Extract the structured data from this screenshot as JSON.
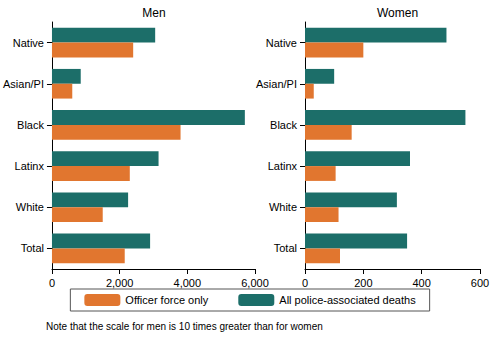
{
  "chart_data": [
    {
      "type": "bar",
      "title": "Men",
      "orientation": "horizontal",
      "categories": [
        "Native",
        "Asian/PI",
        "Black",
        "Latinx",
        "White",
        "Total"
      ],
      "series": [
        {
          "name": "Officer force only",
          "color": "#e1762f",
          "values": [
            2400,
            600,
            3800,
            2300,
            1500,
            2150
          ]
        },
        {
          "name": "All police-associated deaths",
          "color": "#1c6e69",
          "values": [
            3050,
            850,
            5700,
            3150,
            2250,
            2900
          ]
        }
      ],
      "xlim": [
        0,
        6000
      ],
      "xticks": [
        0,
        {
          "value": 2000,
          "label": "2,000"
        },
        {
          "value": 4000,
          "label": "4,000"
        },
        {
          "value": 6000,
          "label": "6,000"
        }
      ],
      "grid": false,
      "legend": "bottom"
    },
    {
      "type": "bar",
      "title": "Women",
      "orientation": "horizontal",
      "categories": [
        "Native",
        "Asian/PI",
        "Black",
        "Latinx",
        "White",
        "Total"
      ],
      "series": [
        {
          "name": "Officer force only",
          "color": "#e1762f",
          "values": [
            200,
            30,
            160,
            105,
            115,
            120
          ]
        },
        {
          "name": "All police-associated deaths",
          "color": "#1c6e69",
          "values": [
            485,
            100,
            550,
            360,
            315,
            350
          ]
        }
      ],
      "xlim": [
        0,
        600
      ],
      "xticks": [
        0,
        200,
        400,
        600
      ],
      "grid": false,
      "legend": "bottom"
    }
  ],
  "note": "Note that the scale for men is 10 times greater than for women"
}
